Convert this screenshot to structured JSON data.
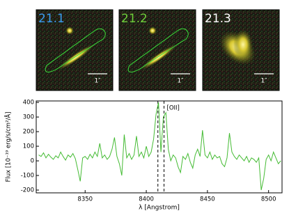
{
  "panels": [
    {
      "label": "21.1",
      "label_color": "#3a9cf0",
      "scale_label": "1″",
      "contour": true
    },
    {
      "label": "21.2",
      "label_color": "#6fd03a",
      "scale_label": "1″",
      "contour": true
    },
    {
      "label": "21.3",
      "label_color": "#ffffff",
      "scale_label": "1″",
      "contour": false
    }
  ],
  "chart_data": {
    "type": "line",
    "y_label": "Flux [10⁻¹⁹ erg/s/cm²/Å]",
    "x_label": "λ [Angstrom]",
    "annotation": "[OII]",
    "vlines": [
      8409.5,
      8414.5
    ],
    "x": [
      8312,
      8314,
      8316,
      8318,
      8320,
      8322,
      8324,
      8326,
      8328,
      8330,
      8332,
      8334,
      8336,
      8338,
      8340,
      8342,
      8344,
      8346,
      8348,
      8350,
      8352,
      8354,
      8356,
      8358,
      8360,
      8362,
      8364,
      8366,
      8368,
      8370,
      8372,
      8374,
      8376,
      8378,
      8380,
      8382,
      8384,
      8386,
      8388,
      8390,
      8392,
      8394,
      8396,
      8398,
      8400,
      8402,
      8404,
      8406,
      8408,
      8410,
      8412,
      8414,
      8416,
      8418,
      8420,
      8422,
      8424,
      8426,
      8428,
      8430,
      8432,
      8434,
      8436,
      8438,
      8440,
      8442,
      8444,
      8446,
      8448,
      8450,
      8452,
      8454,
      8456,
      8458,
      8460,
      8462,
      8464,
      8466,
      8468,
      8470,
      8472,
      8474,
      8476,
      8478,
      8480,
      8482,
      8484,
      8486,
      8488,
      8490,
      8492,
      8494,
      8496,
      8498,
      8500,
      8502,
      8504,
      8506,
      8508,
      8510
    ],
    "series": [
      {
        "color": "#44bb33",
        "values": [
          40,
          30,
          55,
          20,
          45,
          25,
          10,
          35,
          20,
          60,
          30,
          5,
          40,
          25,
          50,
          15,
          -60,
          -140,
          20,
          30,
          10,
          45,
          20,
          60,
          30,
          120,
          20,
          40,
          10,
          30,
          80,
          160,
          30,
          -20,
          -100,
          180,
          20,
          50,
          10,
          40,
          170,
          30,
          60,
          20,
          100,
          30,
          60,
          150,
          320,
          400,
          60,
          300,
          330,
          80,
          0,
          40,
          20,
          -40,
          -80,
          30,
          10,
          50,
          -10,
          -50,
          40,
          80,
          30,
          210,
          40,
          20,
          60,
          10,
          40,
          20,
          30,
          -20,
          -40,
          20,
          190,
          60,
          30,
          10,
          40,
          20,
          0,
          30,
          -10,
          20,
          10,
          -10,
          20,
          -200,
          -120,
          10,
          40,
          0,
          60,
          20,
          -20,
          0
        ]
      }
    ],
    "xlim": [
      8310,
      8511
    ],
    "ylim": [
      -219,
      410
    ],
    "xticks": [
      8350,
      8400,
      8450,
      8500
    ],
    "yticks": [
      -200,
      -100,
      0,
      100,
      200,
      300,
      400
    ]
  }
}
